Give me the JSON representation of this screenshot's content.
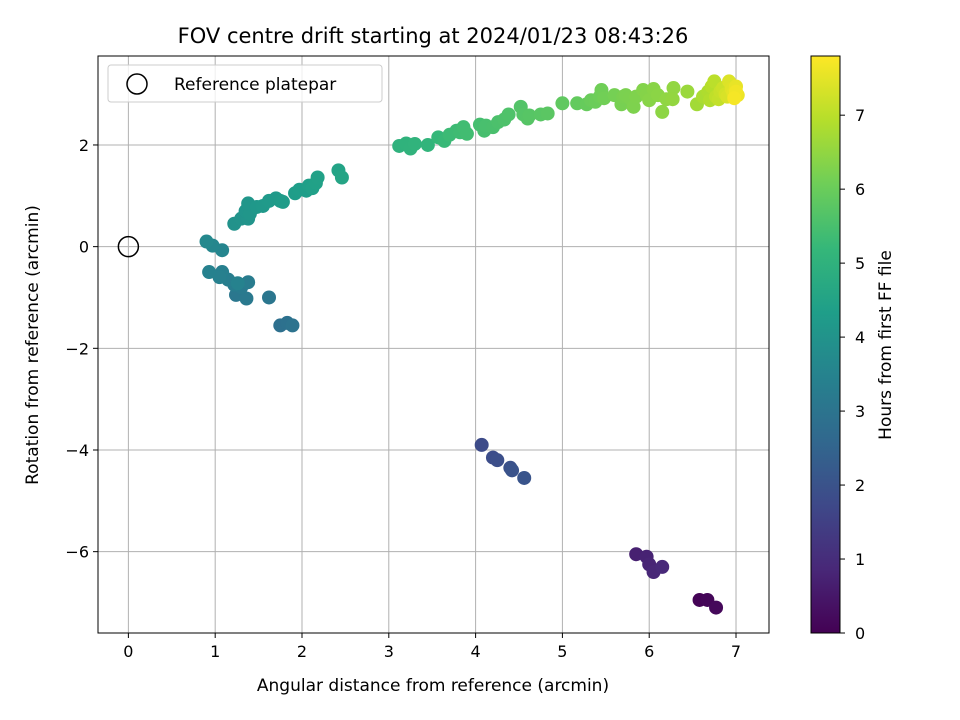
{
  "chart_data": {
    "type": "scatter",
    "title": "FOV centre drift starting at 2024/01/23 08:43:26",
    "xlabel": "Angular distance from reference (arcmin)",
    "ylabel": "Rotation from reference (arcmin)",
    "xlim": [
      -0.35,
      7.38
    ],
    "ylim": [
      -7.6,
      3.75
    ],
    "xticks": [
      0,
      1,
      2,
      3,
      4,
      5,
      6,
      7
    ],
    "yticks": [
      -6,
      -4,
      -2,
      0,
      2
    ],
    "xtick_labels": [
      "0",
      "1",
      "2",
      "3",
      "4",
      "5",
      "6",
      "7"
    ],
    "ytick_labels": [
      "−6",
      "−4",
      "−2",
      "0",
      "2"
    ],
    "grid": true,
    "legend": {
      "position": "top-left",
      "entries": [
        "Reference platepar"
      ]
    },
    "reference_point": {
      "x": 0,
      "y": 0,
      "label": "Reference platepar"
    },
    "colorbar": {
      "label": "Hours from first FF file",
      "range": [
        0,
        7.8
      ],
      "ticks": [
        0,
        1,
        2,
        3,
        4,
        5,
        6,
        7
      ],
      "colormap": [
        "#440154",
        "#482878",
        "#3e4989",
        "#31688e",
        "#26828e",
        "#1f9e89",
        "#35b779",
        "#6ece58",
        "#b5de2b",
        "#fde725"
      ]
    },
    "points": [
      {
        "x": 6.58,
        "y": -6.95,
        "h": 0.05
      },
      {
        "x": 6.67,
        "y": -6.95,
        "h": 0.1
      },
      {
        "x": 6.77,
        "y": -7.1,
        "h": 0.15
      },
      {
        "x": 5.85,
        "y": -6.05,
        "h": 0.7
      },
      {
        "x": 5.97,
        "y": -6.1,
        "h": 0.75
      },
      {
        "x": 6.0,
        "y": -6.25,
        "h": 0.8
      },
      {
        "x": 6.05,
        "y": -6.4,
        "h": 0.85
      },
      {
        "x": 6.15,
        "y": -6.3,
        "h": 0.9
      },
      {
        "x": 4.07,
        "y": -3.9,
        "h": 1.8
      },
      {
        "x": 4.2,
        "y": -4.15,
        "h": 1.85
      },
      {
        "x": 4.25,
        "y": -4.2,
        "h": 1.9
      },
      {
        "x": 4.4,
        "y": -4.35,
        "h": 1.95
      },
      {
        "x": 4.42,
        "y": -4.4,
        "h": 2.0
      },
      {
        "x": 4.56,
        "y": -4.55,
        "h": 2.05
      },
      {
        "x": 1.75,
        "y": -1.55,
        "h": 2.85
      },
      {
        "x": 1.83,
        "y": -1.5,
        "h": 2.9
      },
      {
        "x": 1.89,
        "y": -1.55,
        "h": 2.95
      },
      {
        "x": 1.62,
        "y": -1.0,
        "h": 3.05
      },
      {
        "x": 1.24,
        "y": -0.95,
        "h": 3.1
      },
      {
        "x": 1.36,
        "y": -1.02,
        "h": 3.15
      },
      {
        "x": 1.3,
        "y": -0.8,
        "h": 3.2
      },
      {
        "x": 1.38,
        "y": -0.7,
        "h": 3.25
      },
      {
        "x": 1.22,
        "y": -0.75,
        "h": 3.28
      },
      {
        "x": 1.15,
        "y": -0.65,
        "h": 3.32
      },
      {
        "x": 1.08,
        "y": -0.5,
        "h": 3.36
      },
      {
        "x": 1.05,
        "y": -0.6,
        "h": 3.4
      },
      {
        "x": 0.93,
        "y": -0.5,
        "h": 3.44
      },
      {
        "x": 1.26,
        "y": -0.72,
        "h": 3.47
      },
      {
        "x": 1.08,
        "y": -0.07,
        "h": 3.55
      },
      {
        "x": 0.97,
        "y": 0.02,
        "h": 3.6
      },
      {
        "x": 0.9,
        "y": 0.1,
        "h": 3.65
      },
      {
        "x": 1.22,
        "y": 0.45,
        "h": 3.95
      },
      {
        "x": 1.3,
        "y": 0.55,
        "h": 4.0
      },
      {
        "x": 1.38,
        "y": 0.55,
        "h": 4.02
      },
      {
        "x": 1.35,
        "y": 0.7,
        "h": 4.05
      },
      {
        "x": 1.4,
        "y": 0.65,
        "h": 4.08
      },
      {
        "x": 1.38,
        "y": 0.85,
        "h": 4.1
      },
      {
        "x": 1.48,
        "y": 0.78,
        "h": 4.15
      },
      {
        "x": 1.55,
        "y": 0.8,
        "h": 4.18
      },
      {
        "x": 1.62,
        "y": 0.9,
        "h": 4.2
      },
      {
        "x": 1.7,
        "y": 0.95,
        "h": 4.22
      },
      {
        "x": 1.75,
        "y": 0.9,
        "h": 4.25
      },
      {
        "x": 1.78,
        "y": 0.88,
        "h": 4.27
      },
      {
        "x": 1.92,
        "y": 1.05,
        "h": 4.3
      },
      {
        "x": 1.97,
        "y": 1.12,
        "h": 4.33
      },
      {
        "x": 2.05,
        "y": 1.1,
        "h": 4.35
      },
      {
        "x": 2.08,
        "y": 1.2,
        "h": 4.38
      },
      {
        "x": 2.12,
        "y": 1.15,
        "h": 4.4
      },
      {
        "x": 2.16,
        "y": 1.25,
        "h": 4.42
      },
      {
        "x": 2.18,
        "y": 1.36,
        "h": 4.45
      },
      {
        "x": 2.42,
        "y": 1.5,
        "h": 4.5
      },
      {
        "x": 2.46,
        "y": 1.36,
        "h": 4.55
      },
      {
        "x": 3.12,
        "y": 1.98,
        "h": 5.0
      },
      {
        "x": 3.2,
        "y": 2.03,
        "h": 5.02
      },
      {
        "x": 3.25,
        "y": 1.93,
        "h": 5.04
      },
      {
        "x": 3.3,
        "y": 2.02,
        "h": 5.06
      },
      {
        "x": 3.45,
        "y": 2.0,
        "h": 5.1
      },
      {
        "x": 3.57,
        "y": 2.15,
        "h": 5.2
      },
      {
        "x": 3.64,
        "y": 2.08,
        "h": 5.25
      },
      {
        "x": 3.7,
        "y": 2.2,
        "h": 5.3
      },
      {
        "x": 3.78,
        "y": 2.28,
        "h": 5.32
      },
      {
        "x": 3.82,
        "y": 2.25,
        "h": 5.35
      },
      {
        "x": 3.86,
        "y": 2.35,
        "h": 5.38
      },
      {
        "x": 3.9,
        "y": 2.22,
        "h": 5.4
      },
      {
        "x": 4.05,
        "y": 2.4,
        "h": 5.45
      },
      {
        "x": 4.1,
        "y": 2.28,
        "h": 5.48
      },
      {
        "x": 4.12,
        "y": 2.38,
        "h": 5.5
      },
      {
        "x": 4.2,
        "y": 2.35,
        "h": 5.52
      },
      {
        "x": 4.26,
        "y": 2.45,
        "h": 5.55
      },
      {
        "x": 4.33,
        "y": 2.5,
        "h": 5.58
      },
      {
        "x": 4.38,
        "y": 2.6,
        "h": 5.6
      },
      {
        "x": 4.52,
        "y": 2.75,
        "h": 5.65
      },
      {
        "x": 4.55,
        "y": 2.6,
        "h": 5.68
      },
      {
        "x": 4.6,
        "y": 2.52,
        "h": 5.7
      },
      {
        "x": 4.62,
        "y": 2.58,
        "h": 5.72
      },
      {
        "x": 4.75,
        "y": 2.6,
        "h": 5.75
      },
      {
        "x": 4.83,
        "y": 2.62,
        "h": 5.78
      },
      {
        "x": 5.0,
        "y": 2.82,
        "h": 5.85
      },
      {
        "x": 5.17,
        "y": 2.82,
        "h": 5.9
      },
      {
        "x": 5.28,
        "y": 2.8,
        "h": 5.95
      },
      {
        "x": 5.33,
        "y": 2.88,
        "h": 6.0
      },
      {
        "x": 5.38,
        "y": 2.85,
        "h": 6.02
      },
      {
        "x": 5.43,
        "y": 2.95,
        "h": 6.05
      },
      {
        "x": 5.45,
        "y": 3.08,
        "h": 6.08
      },
      {
        "x": 5.48,
        "y": 2.92,
        "h": 6.1
      },
      {
        "x": 5.6,
        "y": 2.98,
        "h": 6.15
      },
      {
        "x": 5.68,
        "y": 2.8,
        "h": 6.18
      },
      {
        "x": 5.7,
        "y": 2.95,
        "h": 6.2
      },
      {
        "x": 5.73,
        "y": 2.98,
        "h": 6.22
      },
      {
        "x": 5.78,
        "y": 2.92,
        "h": 6.24
      },
      {
        "x": 5.82,
        "y": 2.75,
        "h": 6.26
      },
      {
        "x": 5.85,
        "y": 2.95,
        "h": 6.28
      },
      {
        "x": 5.93,
        "y": 3.08,
        "h": 6.32
      },
      {
        "x": 5.97,
        "y": 2.98,
        "h": 6.35
      },
      {
        "x": 6.0,
        "y": 2.88,
        "h": 6.38
      },
      {
        "x": 6.05,
        "y": 3.1,
        "h": 6.4
      },
      {
        "x": 6.1,
        "y": 2.98,
        "h": 6.42
      },
      {
        "x": 6.15,
        "y": 2.65,
        "h": 6.45
      },
      {
        "x": 6.2,
        "y": 2.9,
        "h": 6.48
      },
      {
        "x": 6.28,
        "y": 3.12,
        "h": 6.5
      },
      {
        "x": 6.27,
        "y": 2.9,
        "h": 6.52
      },
      {
        "x": 6.44,
        "y": 3.05,
        "h": 6.6
      },
      {
        "x": 6.55,
        "y": 2.8,
        "h": 6.7
      },
      {
        "x": 6.62,
        "y": 2.95,
        "h": 6.8
      },
      {
        "x": 6.68,
        "y": 3.05,
        "h": 6.85
      },
      {
        "x": 6.7,
        "y": 2.88,
        "h": 6.9
      },
      {
        "x": 6.72,
        "y": 3.15,
        "h": 6.95
      },
      {
        "x": 6.75,
        "y": 3.25,
        "h": 7.0
      },
      {
        "x": 6.77,
        "y": 2.95,
        "h": 7.05
      },
      {
        "x": 6.8,
        "y": 2.9,
        "h": 7.1
      },
      {
        "x": 6.82,
        "y": 3.05,
        "h": 7.15
      },
      {
        "x": 6.85,
        "y": 3.12,
        "h": 7.2
      },
      {
        "x": 6.88,
        "y": 3.0,
        "h": 7.3
      },
      {
        "x": 6.9,
        "y": 2.95,
        "h": 7.35
      },
      {
        "x": 6.92,
        "y": 3.25,
        "h": 7.4
      },
      {
        "x": 6.95,
        "y": 3.1,
        "h": 7.45
      },
      {
        "x": 6.97,
        "y": 3.02,
        "h": 7.5
      },
      {
        "x": 7.0,
        "y": 3.15,
        "h": 7.55
      },
      {
        "x": 7.02,
        "y": 2.98,
        "h": 7.6
      },
      {
        "x": 7.0,
        "y": 3.05,
        "h": 7.65
      },
      {
        "x": 6.98,
        "y": 2.92,
        "h": 7.7
      }
    ]
  }
}
